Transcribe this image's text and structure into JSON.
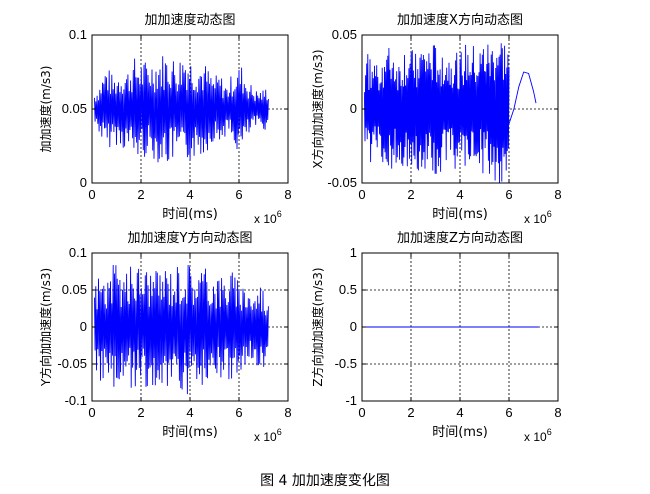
{
  "figure": {
    "caption": "图 4  加加速度变化图"
  },
  "chart_data": [
    {
      "type": "line",
      "title": "加加速度动态图",
      "xlabel": "时间(ms)",
      "ylabel": "加加速度(m/s3)",
      "x_multiplier": "x 10",
      "x_multiplier_exp": "6",
      "xlim": [
        0,
        8
      ],
      "ylim": [
        0,
        0.1
      ],
      "xticks": [
        "0",
        "2",
        "4",
        "6",
        "8"
      ],
      "yticks": [
        "0",
        "0.05",
        "0.1"
      ],
      "grid": true,
      "series": [
        {
          "color": "#0000ff",
          "x_range": [
            0.1,
            7.2
          ],
          "x_end": 7.2,
          "center": 0.05,
          "points": [
            [
              0.0,
              0.058
            ],
            [
              0.29,
              0.035
            ],
            [
              0.58,
              0.078
            ],
            [
              0.87,
              0.03
            ],
            [
              1.16,
              0.075
            ],
            [
              1.45,
              0.025
            ],
            [
              1.74,
              0.082
            ],
            [
              2.03,
              0.02
            ],
            [
              2.32,
              0.08
            ],
            [
              2.61,
              0.018
            ],
            [
              2.9,
              0.085
            ],
            [
              3.19,
              0.015
            ],
            [
              3.48,
              0.08
            ],
            [
              3.77,
              0.012
            ],
            [
              4.06,
              0.082
            ],
            [
              4.35,
              0.02
            ],
            [
              4.64,
              0.078
            ],
            [
              4.93,
              0.03
            ],
            [
              5.22,
              0.072
            ],
            [
              5.51,
              0.035
            ],
            [
              5.8,
              0.075
            ],
            [
              6.09,
              0.022
            ],
            [
              6.38,
              0.068
            ],
            [
              6.67,
              0.038
            ],
            [
              6.96,
              0.062
            ],
            [
              7.2,
              0.035
            ]
          ]
        }
      ]
    },
    {
      "type": "line",
      "title": "加加速度X方向动态图",
      "xlabel": "时间(ms)",
      "ylabel": "X方向加加速度(m/s3)",
      "x_multiplier": "x 10",
      "x_multiplier_exp": "6",
      "xlim": [
        0,
        8
      ],
      "ylim": [
        -0.05,
        0.05
      ],
      "xticks": [
        "0",
        "2",
        "4",
        "6",
        "8"
      ],
      "yticks": [
        "-0.05",
        "0",
        "0.05"
      ],
      "grid": true,
      "series": [
        {
          "color": "#0000ff",
          "x_range": [
            0.1,
            6.0
          ],
          "x_end": 6.0,
          "center": 0.0,
          "points": [
            [
              0.0,
              0.03
            ],
            [
              0.25,
              -0.035
            ],
            [
              0.5,
              0.03
            ],
            [
              0.75,
              -0.035
            ],
            [
              1.0,
              0.038
            ],
            [
              1.25,
              -0.04
            ],
            [
              1.5,
              0.03
            ],
            [
              1.75,
              -0.04
            ],
            [
              2.0,
              0.035
            ],
            [
              2.25,
              -0.042
            ],
            [
              2.5,
              0.04
            ],
            [
              2.75,
              -0.04
            ],
            [
              3.0,
              0.04
            ],
            [
              3.25,
              -0.042
            ],
            [
              3.5,
              0.035
            ],
            [
              3.75,
              -0.038
            ],
            [
              4.0,
              0.035
            ],
            [
              4.25,
              -0.04
            ],
            [
              4.5,
              0.04
            ],
            [
              4.75,
              -0.035
            ],
            [
              5.0,
              0.045
            ],
            [
              5.25,
              -0.04
            ],
            [
              5.5,
              0.048
            ],
            [
              5.75,
              -0.045
            ],
            [
              6.0,
              0.04
            ]
          ]
        },
        {
          "color": "#0000ff",
          "x_range": [
            6.0,
            7.1
          ],
          "x_end": 7.1,
          "center": 0.0,
          "points": [
            [
              6.0,
              -0.01
            ],
            [
              6.2,
              0.0
            ],
            [
              6.4,
              0.015
            ],
            [
              6.6,
              0.025
            ],
            [
              6.8,
              0.024
            ],
            [
              7.0,
              0.012
            ],
            [
              7.1,
              0.004
            ]
          ]
        }
      ]
    },
    {
      "type": "line",
      "title": "加加速度Y方向动态图",
      "xlabel": "时间(ms)",
      "ylabel": "Y方向加加速度(m/s3)",
      "x_multiplier": "x 10",
      "x_multiplier_exp": "6",
      "xlim": [
        0,
        8
      ],
      "ylim": [
        -0.1,
        0.1
      ],
      "xticks": [
        "0",
        "2",
        "4",
        "6",
        "8"
      ],
      "yticks": [
        "-0.1",
        "-0.05",
        "0",
        "0.05",
        "0.1"
      ],
      "grid": true,
      "series": [
        {
          "color": "#0000ff",
          "x_range": [
            0.1,
            7.2
          ],
          "x_end": 7.2,
          "center": 0.0,
          "points": [
            [
              0.0,
              0.045
            ],
            [
              0.3,
              -0.07
            ],
            [
              0.6,
              0.06
            ],
            [
              0.9,
              -0.08
            ],
            [
              1.2,
              0.07
            ],
            [
              1.5,
              -0.075
            ],
            [
              1.8,
              0.08
            ],
            [
              2.1,
              -0.08
            ],
            [
              2.4,
              0.075
            ],
            [
              2.7,
              -0.07
            ],
            [
              3.0,
              0.08
            ],
            [
              3.3,
              -0.075
            ],
            [
              3.6,
              0.085
            ],
            [
              3.9,
              -0.085
            ],
            [
              4.2,
              0.075
            ],
            [
              4.5,
              -0.08
            ],
            [
              4.8,
              0.07
            ],
            [
              5.1,
              -0.07
            ],
            [
              5.4,
              0.065
            ],
            [
              5.7,
              -0.075
            ],
            [
              6.0,
              0.055
            ],
            [
              6.3,
              -0.06
            ],
            [
              6.6,
              0.04
            ],
            [
              6.9,
              -0.06
            ],
            [
              7.2,
              0.03
            ]
          ]
        }
      ]
    },
    {
      "type": "line",
      "title": "加加速度Z方向动态图",
      "xlabel": "时间(ms)",
      "ylabel": "Z方向加加速度(m/s3)",
      "x_multiplier": "x 10",
      "x_multiplier_exp": "6",
      "xlim": [
        0,
        8
      ],
      "ylim": [
        -1,
        1
      ],
      "xticks": [
        "0",
        "2",
        "4",
        "6",
        "8"
      ],
      "yticks": [
        "-1",
        "-0.5",
        "0",
        "0.5",
        "1"
      ],
      "grid": true,
      "series": [
        {
          "color": "#0000ff",
          "x_range": [
            0.1,
            7.2
          ],
          "x_end": 7.2,
          "center": 0.0,
          "points": [
            [
              0.1,
              0.0
            ],
            [
              7.2,
              0.0
            ]
          ]
        }
      ]
    }
  ]
}
